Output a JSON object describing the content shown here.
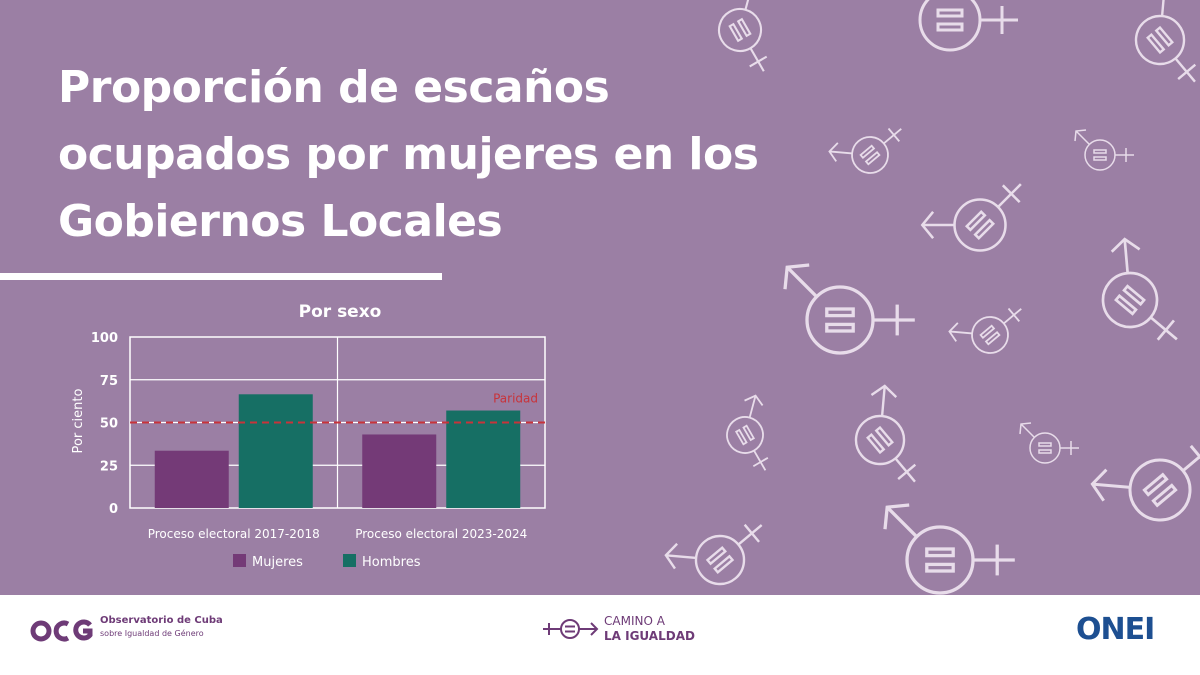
{
  "title": "Proporción de escaños ocupados por mujeres en los Gobiernos Locales",
  "chart_data": {
    "type": "bar",
    "title": "Por sexo",
    "ylabel": "Por ciento",
    "xlabel": "",
    "ylim": [
      0,
      100
    ],
    "yticks": [
      0,
      25,
      50,
      75,
      100
    ],
    "categories": [
      "Proceso electoral 2017-2018",
      "Proceso electoral 2023-2024"
    ],
    "series": [
      {
        "name": "Mujeres",
        "color": "#743a77",
        "values": [
          33.5,
          43
        ]
      },
      {
        "name": "Hombres",
        "color": "#166f64",
        "values": [
          66.5,
          57
        ]
      }
    ],
    "reference_line": {
      "value": 50,
      "label": "Paridad",
      "color": "#c8333a"
    },
    "legend": "bottom",
    "grid": true
  },
  "footer": {
    "ocg_name": "Observatorio de Cuba",
    "ocg_subtitle": "sobre Igualdad de Género",
    "ocg_icon": "ocg-logo",
    "camino_line1": "CAMINO A",
    "camino_line2": "LA IGUALDAD",
    "camino_icon": "gender-equality-icon",
    "onei_label": "ONEI"
  },
  "colors": {
    "background": "#9b7fa4",
    "accent": "#743a77",
    "secondary": "#166f64",
    "reference": "#c8333a"
  }
}
